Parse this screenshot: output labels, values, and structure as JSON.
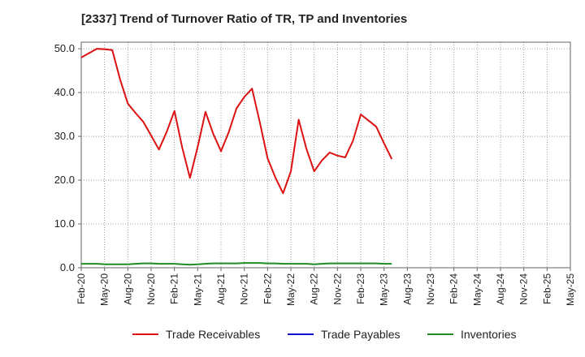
{
  "chart_data": {
    "type": "line",
    "title": "[2337]  Trend of Turnover Ratio of TR, TP and Inventories",
    "xlabel": "",
    "ylabel": "",
    "ylim": [
      0,
      51.5
    ],
    "y_ticks": [
      "0.0",
      "10.0",
      "20.0",
      "30.0",
      "40.0",
      "50.0"
    ],
    "x_ticks": [
      "Feb-20",
      "May-20",
      "Aug-20",
      "Nov-20",
      "Feb-21",
      "May-21",
      "Aug-21",
      "Nov-21",
      "Feb-22",
      "May-22",
      "Aug-22",
      "Nov-22",
      "Feb-23",
      "May-23",
      "Aug-23",
      "Nov-23",
      "Feb-24",
      "May-24",
      "Aug-24",
      "Nov-24",
      "Feb-25",
      "May-25"
    ],
    "grid": true,
    "legend_position": "bottom",
    "series": [
      {
        "name": "Trade Receivables",
        "color": "#dd1111",
        "values": [
          48.0,
          49.0,
          50.0,
          49.9,
          49.7,
          43.0,
          37.5,
          35.3,
          33.3,
          30.2,
          27.0,
          31.0,
          35.8,
          27.5,
          20.5,
          27.6,
          35.6,
          30.6,
          26.6,
          31.0,
          36.4,
          39.0,
          40.9,
          33.2,
          25.0,
          20.6,
          17.0,
          22.0,
          33.8,
          27.2,
          22.0,
          24.5,
          26.3,
          25.6,
          25.2,
          29.0,
          35.0,
          33.6,
          32.2,
          28.4,
          24.8
        ]
      },
      {
        "name": "Trade Payables",
        "color": "#1111cc",
        "values": []
      },
      {
        "name": "Inventories",
        "color": "#228b22",
        "values": [
          0.9,
          0.9,
          0.9,
          0.8,
          0.8,
          0.8,
          0.8,
          0.9,
          1.0,
          1.0,
          0.9,
          0.9,
          0.9,
          0.8,
          0.7,
          0.8,
          0.9,
          1.0,
          1.0,
          1.0,
          1.0,
          1.1,
          1.1,
          1.1,
          1.0,
          1.0,
          0.9,
          0.9,
          0.9,
          0.9,
          0.8,
          0.9,
          1.0,
          1.0,
          1.0,
          1.0,
          1.0,
          1.0,
          1.0,
          0.9,
          0.9
        ]
      }
    ]
  }
}
